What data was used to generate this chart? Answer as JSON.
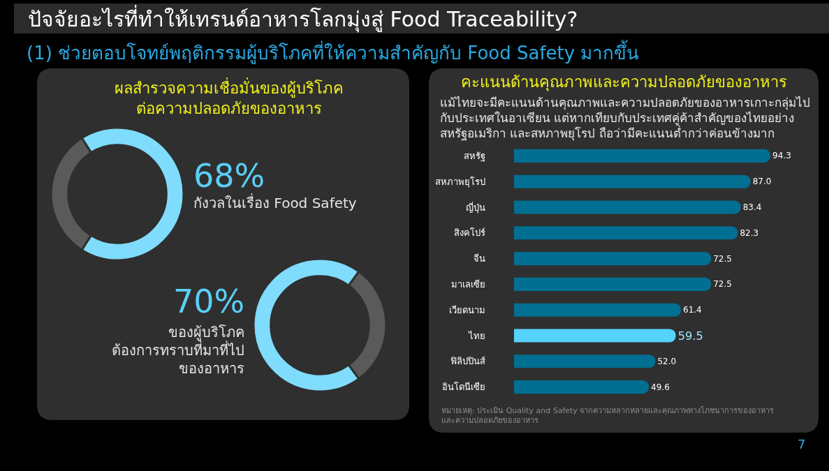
{
  "chart_data": [
    {
      "type": "other",
      "title": "ปัจจัยอะไรที่ทำให้เทรนด์อาหารโลกมุ่งสู่ Food Traceability?",
      "subtitle": "(1) ช่วยตอบโจทย์พฤติกรรมผู้บริโภคที่ให้ความสำคัญกับ Food Safety มากขึ้น",
      "annotations": [
        "7"
      ]
    },
    {
      "type": "donut",
      "title": "ผลสำรวจความเชื่อมั่นของผู้บริโภค\nต่อความปลอดภัยของอาหาร",
      "categories": [
        "กังวลในเรื่อง Food Safety",
        null
      ],
      "values": [
        68,
        32
      ],
      "colors": [
        "#7fdcfc",
        "#5a5a5a"
      ],
      "value_labels": [
        "68%",
        null
      ]
    },
    {
      "type": "donut",
      "categories": [
        "ของผู้บริโภค\nต้องการทราบที่มาที่ไป\nของอาหาร",
        null
      ],
      "values": [
        70,
        30
      ],
      "colors": [
        "#7fdcfc",
        "#5a5a5a"
      ],
      "value_labels": [
        "70%",
        null
      ]
    },
    {
      "type": "bar",
      "orientation": "horizontal",
      "title": "คะแนนด้านคุณภาพและความปลอดภัยของอาหาร",
      "subtitle": "แม้ไทยจะมีคะแนนด้านคุณภาพและความปลอดภัยของอาหารเกาะกลุ่มไป\nกับประเทศในอาเซียน แต่หากเทียบกับประเทศคู่ค้าสำคัญของไทยอย่าง\nสหรัฐอเมริกา และสหภาพยุโรป ถือว่ามีคะแนนต่ำกว่าค่อนข้างมาก",
      "categories": [
        "สหรัฐ",
        "สหภาพยุโรป",
        "ญี่ปุ่น",
        "สิงคโปร์",
        "จีน",
        "มาเลเซีย",
        "เวียดนาม",
        "ไทย",
        "ฟิลิปปินส์",
        "อินโดนีเซีย"
      ],
      "values": [
        94.3,
        87.0,
        83.4,
        82.3,
        72.5,
        72.5,
        61.4,
        59.5,
        52.0,
        49.6
      ],
      "colors": [
        "#016f91",
        "#016f91",
        "#016f91",
        "#016f91",
        "#016f91",
        "#016f91",
        "#016f91",
        "#55d3fb",
        "#016f91",
        "#016f91"
      ],
      "value_labels": [
        "94.3",
        "87.0",
        "83.4",
        "82.3",
        "72.5",
        "72.5",
        "61.4",
        "59.5",
        "52.0",
        "49.6"
      ],
      "annotations": [
        "หมายเหตุ: ประเมิน Quality and Safety จากความหลากหลายและคุณภาพทางโภชนาการของอาหาร\nและความปลอดภัยของอาหาร"
      ]
    }
  ]
}
